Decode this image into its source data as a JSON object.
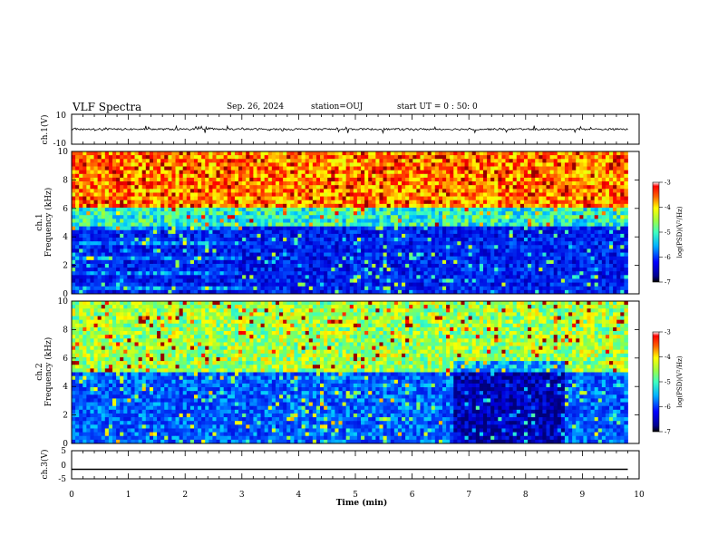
{
  "header": {
    "title": "VLF Spectra",
    "date": "Sep. 26, 2024",
    "station": "station=OUJ",
    "start_ut": "start UT =  0 : 50: 0"
  },
  "chart_data": [
    {
      "type": "line",
      "panel": "ch1-waveform",
      "ylabel": "ch.1(V)",
      "ylim": [
        -10,
        10
      ],
      "yticks": [
        "10",
        "-10"
      ],
      "xlim": [
        0,
        10
      ],
      "description_series": [
        {
          "values_range": [
            -1,
            1
          ],
          "mean": 0
        }
      ]
    },
    {
      "type": "heatmap",
      "panel": "ch1-spectrogram",
      "ylabel_line1": "ch.1",
      "ylabel_line2": "Frequency (kHz)",
      "ylim": [
        0,
        10
      ],
      "yticks": [
        "0",
        "2",
        "4",
        "6",
        "8",
        "10"
      ],
      "xlim": [
        0,
        9.8
      ],
      "colorbar": {
        "label": "log(PSD)(V²/Hz)",
        "range": [
          -7,
          -3
        ],
        "ticks": [
          "-3",
          "-4",
          "-5",
          "-6",
          "-7"
        ]
      },
      "bands_logpsd": [
        {
          "freq_khz": [
            0,
            4.8
          ],
          "logpsd": -6.2
        },
        {
          "freq_khz": [
            4.8,
            6.0
          ],
          "logpsd": -5.0
        },
        {
          "freq_khz": [
            6.0,
            10
          ],
          "logpsd": -3.7
        }
      ]
    },
    {
      "type": "heatmap",
      "panel": "ch2-spectrogram",
      "ylabel_line1": "ch.2",
      "ylabel_line2": "Frequency (kHz)",
      "ylim": [
        0,
        10
      ],
      "yticks": [
        "0",
        "2",
        "4",
        "6",
        "8",
        "10"
      ],
      "xlim": [
        0,
        9.8
      ],
      "colorbar": {
        "label": "log(PSD)(V²/Hz)",
        "range": [
          -7,
          -3
        ],
        "ticks": [
          "-3",
          "-4",
          "-5",
          "-6",
          "-7"
        ]
      },
      "bands_logpsd": [
        {
          "freq_khz": [
            0,
            5.0
          ],
          "logpsd": -5.8
        },
        {
          "freq_khz": [
            5.0,
            10
          ],
          "logpsd": -4.5
        }
      ]
    },
    {
      "type": "line",
      "panel": "ch3-waveform",
      "ylabel": "ch.3(V)",
      "ylim": [
        -5,
        5
      ],
      "yticks": [
        "5",
        "0",
        "-5"
      ],
      "xlim": [
        0,
        10
      ],
      "series": [
        {
          "x": [
            0,
            9.8
          ],
          "y": [
            -1.6,
            -1.6
          ]
        }
      ]
    }
  ],
  "xaxis": {
    "label": "Time (min)",
    "ticks": [
      "0",
      "1",
      "2",
      "3",
      "4",
      "5",
      "6",
      "7",
      "8",
      "9",
      "10"
    ]
  },
  "colors": {
    "jet": [
      "#00008f",
      "#0000ff",
      "#0080ff",
      "#00ffff",
      "#80ff80",
      "#ffff00",
      "#ff8000",
      "#ff0000",
      "#800000"
    ]
  }
}
